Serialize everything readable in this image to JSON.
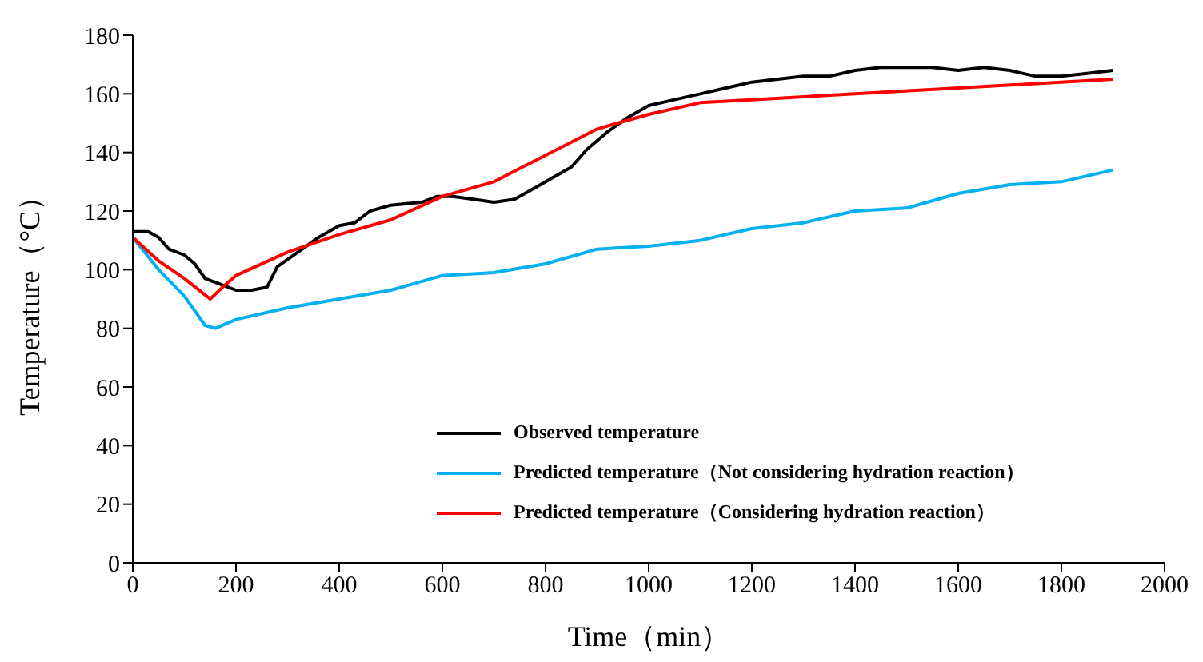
{
  "chart_data": {
    "type": "line",
    "xlabel": "Time（min）",
    "ylabel": "Temperature（°C）",
    "xlim": [
      0,
      2000
    ],
    "xticks": [
      0,
      200,
      400,
      600,
      800,
      1000,
      1200,
      1400,
      1600,
      1800,
      2000
    ],
    "ylim": [
      0,
      180
    ],
    "yticks": [
      0,
      20,
      40,
      60,
      80,
      100,
      120,
      140,
      160,
      180
    ],
    "grid": false,
    "legend": "bottom",
    "marker": "none",
    "line_style": "solid",
    "series": [
      {
        "name": "Observed temperature",
        "color": "#000000",
        "x": [
          0,
          30,
          50,
          70,
          100,
          120,
          140,
          170,
          200,
          230,
          260,
          280,
          320,
          360,
          400,
          430,
          460,
          500,
          560,
          590,
          620,
          660,
          700,
          740,
          780,
          820,
          850,
          880,
          920,
          960,
          1000,
          1050,
          1100,
          1150,
          1200,
          1250,
          1300,
          1350,
          1400,
          1450,
          1500,
          1550,
          1600,
          1650,
          1700,
          1750,
          1800,
          1850,
          1900
        ],
        "values": [
          113,
          113,
          111,
          107,
          105,
          102,
          97,
          95,
          93,
          93,
          94,
          101,
          106,
          111,
          115,
          116,
          120,
          122,
          123,
          125,
          125,
          124,
          123,
          124,
          128,
          132,
          135,
          141,
          147,
          152,
          156,
          158,
          160,
          162,
          164,
          165,
          166,
          166,
          168,
          169,
          169,
          169,
          168,
          169,
          168,
          166,
          166,
          167,
          168
        ]
      },
      {
        "name": "Predicted temperature（Not considering hydration reaction）",
        "color": "#00b0f0",
        "x": [
          0,
          50,
          100,
          140,
          160,
          200,
          300,
          400,
          500,
          600,
          700,
          800,
          900,
          1000,
          1100,
          1200,
          1300,
          1400,
          1500,
          1600,
          1700,
          1800,
          1900
        ],
        "values": [
          111,
          100,
          91,
          81,
          80,
          83,
          87,
          90,
          93,
          98,
          99,
          102,
          107,
          108,
          110,
          114,
          116,
          120,
          121,
          126,
          129,
          130,
          134
        ]
      },
      {
        "name": "Predicted temperature（Considering hydration reaction）",
        "color": "#ff0000",
        "x": [
          0,
          50,
          100,
          150,
          180,
          200,
          300,
          400,
          500,
          600,
          700,
          800,
          900,
          1000,
          1100,
          1200,
          1400,
          1600,
          1900
        ],
        "values": [
          111,
          103,
          97,
          90,
          95,
          98,
          106,
          112,
          117,
          125,
          130,
          139,
          148,
          153,
          157,
          158,
          160,
          162,
          165
        ]
      }
    ]
  }
}
